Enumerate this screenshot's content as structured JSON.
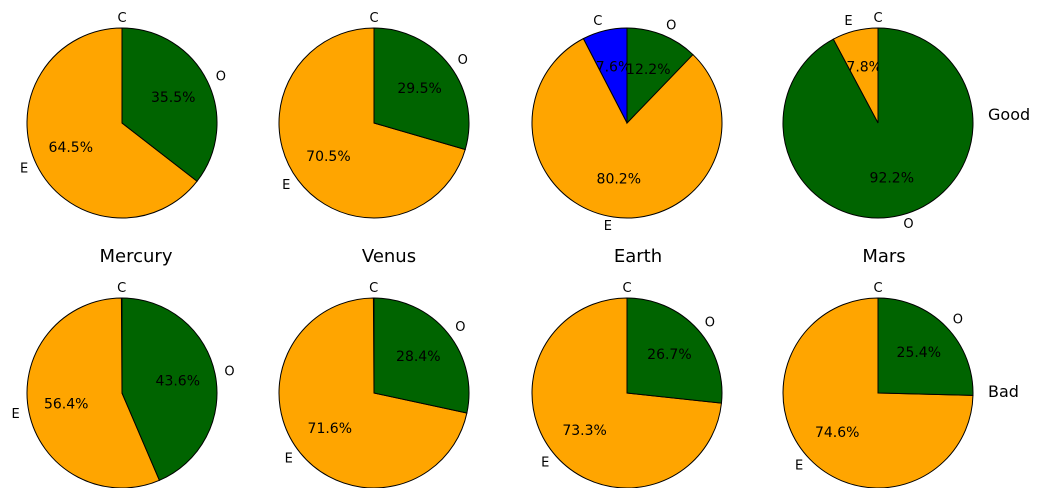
{
  "chart_data": {
    "type": "pie",
    "colors": {
      "C": "#0000ff",
      "E": "#ffa500",
      "O": "#006400"
    },
    "slice_order": [
      "C",
      "E",
      "O"
    ],
    "planets": [
      "Mercury",
      "Venus",
      "Earth",
      "Mars"
    ],
    "rows": [
      {
        "label": "Good",
        "charts": [
          {
            "planet": "Mercury",
            "slices": [
              {
                "label": "C",
                "value": 0.0,
                "pct_text": "0.0%"
              },
              {
                "label": "E",
                "value": 64.5,
                "pct_text": "64.5%"
              },
              {
                "label": "O",
                "value": 35.5,
                "pct_text": "35.5%"
              }
            ]
          },
          {
            "planet": "Venus",
            "slices": [
              {
                "label": "C",
                "value": 0.0,
                "pct_text": "0.0%"
              },
              {
                "label": "E",
                "value": 70.5,
                "pct_text": "70.5%"
              },
              {
                "label": "O",
                "value": 29.5,
                "pct_text": "29.5%"
              }
            ]
          },
          {
            "planet": "Earth",
            "slices": [
              {
                "label": "C",
                "value": 7.6,
                "pct_text": "7.6%"
              },
              {
                "label": "E",
                "value": 80.2,
                "pct_text": "80.2%"
              },
              {
                "label": "O",
                "value": 12.2,
                "pct_text": "12.2%"
              }
            ]
          },
          {
            "planet": "Mars",
            "slices": [
              {
                "label": "C",
                "value": 0.0,
                "pct_text": "0.0%"
              },
              {
                "label": "E",
                "value": 7.8,
                "pct_text": "7.8%"
              },
              {
                "label": "O",
                "value": 92.2,
                "pct_text": "92.2%"
              }
            ]
          }
        ]
      },
      {
        "label": "Bad",
        "charts": [
          {
            "planet": "Mercury",
            "slices": [
              {
                "label": "C",
                "value": 0.1,
                "pct_text": "0.1%"
              },
              {
                "label": "E",
                "value": 56.4,
                "pct_text": "56.4%"
              },
              {
                "label": "O",
                "value": 43.6,
                "pct_text": "43.6%"
              }
            ]
          },
          {
            "planet": "Venus",
            "slices": [
              {
                "label": "C",
                "value": 0.1,
                "pct_text": "0.1%"
              },
              {
                "label": "E",
                "value": 71.6,
                "pct_text": "71.6%"
              },
              {
                "label": "O",
                "value": 28.4,
                "pct_text": "28.4%"
              }
            ]
          },
          {
            "planet": "Earth",
            "slices": [
              {
                "label": "C",
                "value": 0.0,
                "pct_text": "0.0%"
              },
              {
                "label": "E",
                "value": 73.3,
                "pct_text": "73.3%"
              },
              {
                "label": "O",
                "value": 26.7,
                "pct_text": "26.7%"
              }
            ]
          },
          {
            "planet": "Mars",
            "slices": [
              {
                "label": "C",
                "value": 0.0,
                "pct_text": "0.0%"
              },
              {
                "label": "E",
                "value": 74.6,
                "pct_text": "74.6%"
              },
              {
                "label": "O",
                "value": 25.4,
                "pct_text": "25.4%"
              }
            ]
          }
        ]
      }
    ]
  }
}
